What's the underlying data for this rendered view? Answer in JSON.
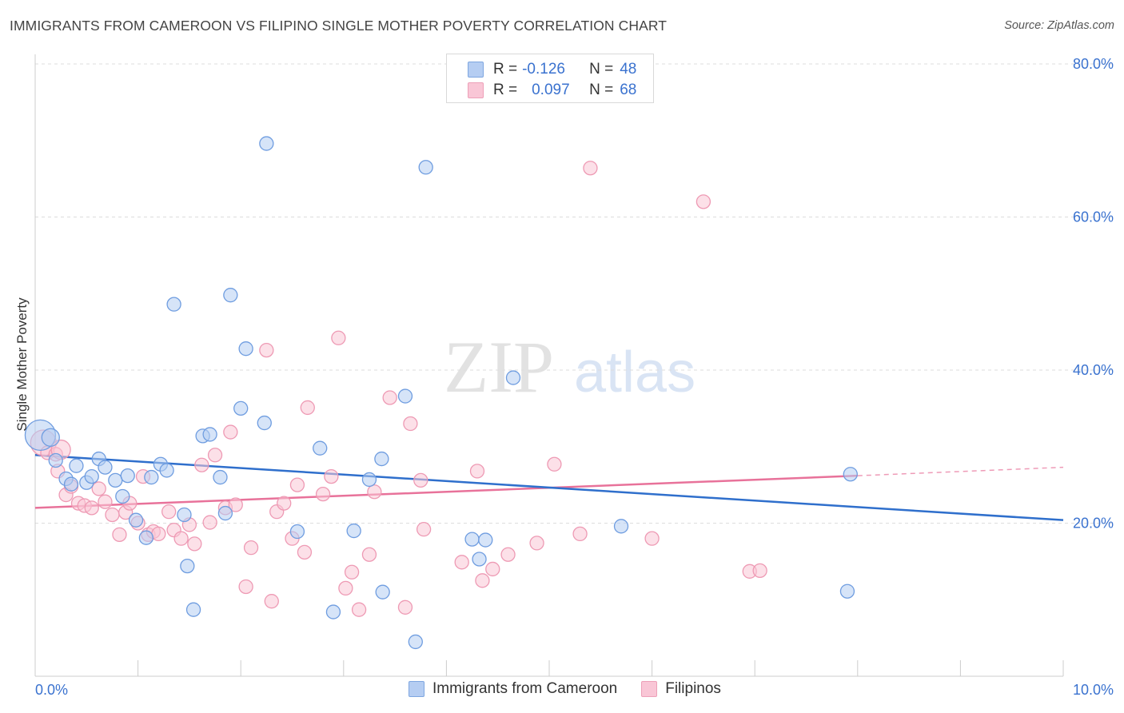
{
  "title": "IMMIGRANTS FROM CAMEROON VS FILIPINO SINGLE MOTHER POVERTY CORRELATION CHART",
  "source": "Source: ZipAtlas.com",
  "watermark": {
    "zip": "ZIP",
    "atlas": "atlas"
  },
  "legend": {
    "rows": [
      {
        "r_label": "R =",
        "r_value": "-0.126",
        "n_label": "N =",
        "n_value": "48"
      },
      {
        "r_label": "R =",
        "r_value": "0.097",
        "n_label": "N =",
        "n_value": "68"
      }
    ]
  },
  "colors": {
    "blue": "#6f9de0",
    "blue_fill": "#b5cdf2",
    "blue_line": "#2f6fcc",
    "pink": "#ee9ab4",
    "pink_fill": "#f9c6d6",
    "pink_line": "#e8729a",
    "axis_text": "#3a72cf"
  },
  "chart_data": {
    "type": "scatter",
    "title": "IMMIGRANTS FROM CAMEROON VS FILIPINO SINGLE MOTHER POVERTY CORRELATION CHART",
    "xlabel": "",
    "ylabel": "Single Mother Poverty",
    "xlim": [
      0,
      10
    ],
    "ylim": [
      0,
      80
    ],
    "x_tick_labels": [
      "0.0%",
      "10.0%"
    ],
    "y_ticks": [
      20,
      40,
      60,
      80
    ],
    "y_tick_labels": [
      "20.0%",
      "40.0%",
      "60.0%",
      "80.0%"
    ],
    "grid": true,
    "legend_position": "top-center",
    "series": [
      {
        "name": "Immigrants from Cameroon",
        "color": "#6f9de0",
        "trend": {
          "x": [
            0,
            10
          ],
          "y": [
            28.9,
            20.4
          ]
        },
        "points": [
          [
            0.05,
            31.5
          ],
          [
            0.15,
            31.2
          ],
          [
            0.2,
            28.2
          ],
          [
            0.3,
            25.8
          ],
          [
            0.35,
            25.1
          ],
          [
            0.4,
            27.5
          ],
          [
            0.5,
            25.3
          ],
          [
            0.55,
            26.1
          ],
          [
            0.62,
            28.4
          ],
          [
            0.68,
            27.3
          ],
          [
            0.78,
            25.6
          ],
          [
            0.85,
            23.5
          ],
          [
            0.9,
            26.2
          ],
          [
            0.98,
            20.4
          ],
          [
            1.08,
            18.1
          ],
          [
            1.13,
            26.0
          ],
          [
            1.22,
            27.7
          ],
          [
            1.28,
            26.9
          ],
          [
            1.35,
            48.6
          ],
          [
            1.45,
            21.1
          ],
          [
            1.48,
            14.4
          ],
          [
            1.54,
            8.7
          ],
          [
            1.63,
            31.4
          ],
          [
            1.7,
            31.6
          ],
          [
            1.8,
            26.0
          ],
          [
            1.85,
            21.3
          ],
          [
            1.9,
            49.8
          ],
          [
            2.0,
            35.0
          ],
          [
            2.05,
            42.8
          ],
          [
            2.25,
            69.6
          ],
          [
            2.23,
            33.1
          ],
          [
            2.55,
            18.9
          ],
          [
            2.77,
            29.8
          ],
          [
            2.9,
            8.4
          ],
          [
            3.1,
            19.0
          ],
          [
            3.25,
            25.7
          ],
          [
            3.38,
            11.0
          ],
          [
            3.37,
            28.4
          ],
          [
            3.6,
            36.6
          ],
          [
            3.7,
            4.5
          ],
          [
            3.8,
            66.5
          ],
          [
            4.25,
            17.9
          ],
          [
            4.32,
            15.3
          ],
          [
            4.38,
            17.8
          ],
          [
            4.65,
            39.0
          ],
          [
            5.7,
            19.6
          ],
          [
            7.93,
            26.4
          ],
          [
            7.9,
            11.1
          ]
        ]
      },
      {
        "name": "Filipinos",
        "color": "#ee9ab4",
        "trend": {
          "x": [
            0,
            8.0
          ],
          "y": [
            22.0,
            26.2
          ]
        },
        "trend_dashed": {
          "x": [
            8.0,
            10
          ],
          "y": [
            26.2,
            27.3
          ]
        },
        "points": [
          [
            0.08,
            30.5
          ],
          [
            0.12,
            29.2
          ],
          [
            0.2,
            29.0
          ],
          [
            0.25,
            29.6
          ],
          [
            0.22,
            26.8
          ],
          [
            0.3,
            23.7
          ],
          [
            0.35,
            24.8
          ],
          [
            0.42,
            22.6
          ],
          [
            0.48,
            22.3
          ],
          [
            0.55,
            22.0
          ],
          [
            0.62,
            24.5
          ],
          [
            0.68,
            22.8
          ],
          [
            0.75,
            21.1
          ],
          [
            0.82,
            18.5
          ],
          [
            0.88,
            21.4
          ],
          [
            0.92,
            22.6
          ],
          [
            1.0,
            20.0
          ],
          [
            1.05,
            26.1
          ],
          [
            1.1,
            18.5
          ],
          [
            1.15,
            18.9
          ],
          [
            1.2,
            18.6
          ],
          [
            1.3,
            21.5
          ],
          [
            1.35,
            19.1
          ],
          [
            1.42,
            18.0
          ],
          [
            1.5,
            19.8
          ],
          [
            1.55,
            17.3
          ],
          [
            1.62,
            27.6
          ],
          [
            1.7,
            20.1
          ],
          [
            1.75,
            28.9
          ],
          [
            1.85,
            22.0
          ],
          [
            1.9,
            31.9
          ],
          [
            1.95,
            22.4
          ],
          [
            2.05,
            11.7
          ],
          [
            2.1,
            16.8
          ],
          [
            2.25,
            42.6
          ],
          [
            2.3,
            9.8
          ],
          [
            2.35,
            21.5
          ],
          [
            2.42,
            22.6
          ],
          [
            2.5,
            18.0
          ],
          [
            2.55,
            25.0
          ],
          [
            2.62,
            16.2
          ],
          [
            2.65,
            35.1
          ],
          [
            2.8,
            23.8
          ],
          [
            2.88,
            26.1
          ],
          [
            2.95,
            44.2
          ],
          [
            3.02,
            11.5
          ],
          [
            3.08,
            13.6
          ],
          [
            3.15,
            8.7
          ],
          [
            3.25,
            15.9
          ],
          [
            3.3,
            24.1
          ],
          [
            3.45,
            36.4
          ],
          [
            3.65,
            33.0
          ],
          [
            3.75,
            25.6
          ],
          [
            3.78,
            19.2
          ],
          [
            4.15,
            14.9
          ],
          [
            4.3,
            26.8
          ],
          [
            4.35,
            12.5
          ],
          [
            4.45,
            14.0
          ],
          [
            4.6,
            15.9
          ],
          [
            4.88,
            17.4
          ],
          [
            5.05,
            27.7
          ],
          [
            5.3,
            18.6
          ],
          [
            5.4,
            66.4
          ],
          [
            6.0,
            18.0
          ],
          [
            6.5,
            62.0
          ],
          [
            6.95,
            13.7
          ],
          [
            7.05,
            13.8
          ],
          [
            3.6,
            9.0
          ]
        ]
      }
    ]
  },
  "bottom_legend": [
    "Immigrants from Cameroon",
    "Filipinos"
  ]
}
